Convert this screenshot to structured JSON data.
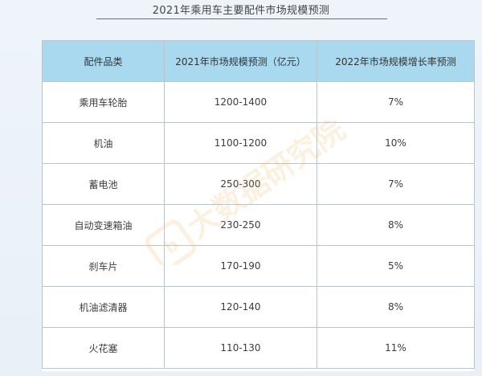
{
  "title": "2021年乘用车主要配件市场规模预测",
  "table": {
    "headers": [
      "配件品类",
      "2021年市场规模预测（亿元）",
      "2022年市场规模增长率预测"
    ],
    "rows": [
      [
        "乘用车轮胎",
        "1200-1400",
        "7%"
      ],
      [
        "机油",
        "1100-1200",
        "10%"
      ],
      [
        "蓄电池",
        "250-300",
        "7%"
      ],
      [
        "自动变速箱油",
        "230-250",
        "8%"
      ],
      [
        "刹车片",
        "170-190",
        "5%"
      ],
      [
        "机油滤清器",
        "120-140",
        "8%"
      ],
      [
        "火花塞",
        "110-130",
        "11%"
      ]
    ]
  },
  "watermark": {
    "text": "大数据研究院",
    "color": "#f2b15a"
  },
  "colors": {
    "header_bg": "#a9d9ee",
    "border": "#b9c4cc"
  }
}
